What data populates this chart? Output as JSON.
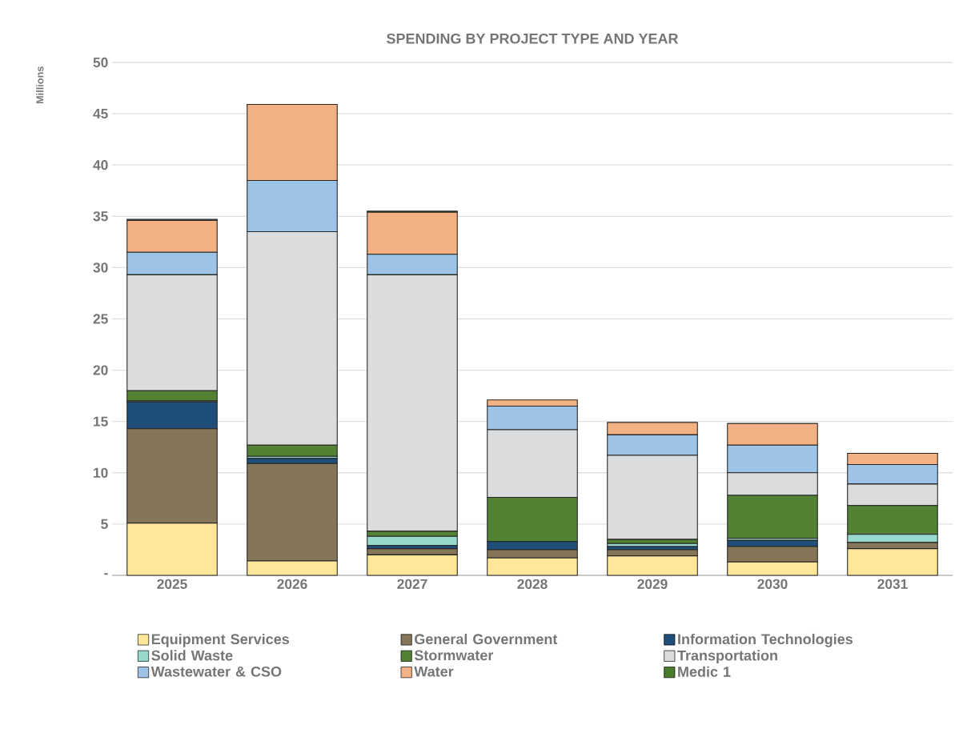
{
  "chart_data": {
    "type": "bar",
    "stacked": true,
    "title": "SPENDING BY PROJECT TYPE AND YEAR",
    "ylabel": "Millions",
    "categories": [
      "2025",
      "2026",
      "2027",
      "2028",
      "2029",
      "2030",
      "2031"
    ],
    "series": [
      {
        "name": "Equipment Services",
        "color": "#ffe699",
        "values": [
          5.1,
          1.4,
          2.0,
          1.7,
          1.9,
          1.3,
          2.6
        ]
      },
      {
        "name": "General Government",
        "color": "#857659",
        "values": [
          9.2,
          9.5,
          0.6,
          0.8,
          0.6,
          1.5,
          0.6
        ]
      },
      {
        "name": "Information Technologies",
        "color": "#1f4e79",
        "values": [
          2.6,
          0.5,
          0.3,
          0.8,
          0.3,
          0.6,
          0.0
        ]
      },
      {
        "name": "Solid Waste",
        "color": "#97d9cc",
        "values": [
          0.1,
          0.2,
          0.9,
          null,
          0.3,
          0.2,
          0.8
        ]
      },
      {
        "name": "Stormwater",
        "color": "#548235",
        "values": [
          1.0,
          1.1,
          0.5,
          4.3,
          0.4,
          4.2,
          2.8
        ]
      },
      {
        "name": "Transportation",
        "color": "#dbdcde",
        "values": [
          11.3,
          20.8,
          25.0,
          6.6,
          8.2,
          2.2,
          2.1
        ]
      },
      {
        "name": "Wastewater & CSO",
        "color": "#9dc3e6",
        "values": [
          2.2,
          5.0,
          2.0,
          2.3,
          2.0,
          2.7,
          1.9
        ]
      },
      {
        "name": "Water",
        "color": "#f4b183",
        "values": [
          3.1,
          7.4,
          4.1,
          0.6,
          1.2,
          2.1,
          1.1
        ]
      },
      {
        "name": "Medic 1",
        "color": "#4a7a2c",
        "values": [
          0.1,
          0.0,
          0.1,
          null,
          0.0,
          0.0,
          0.0
        ]
      }
    ],
    "ylim": [
      0,
      50
    ],
    "yticks": [
      {
        "value": 0,
        "label": "-"
      },
      5,
      10,
      15,
      20,
      25,
      30,
      35,
      40,
      45,
      50
    ],
    "grid": "y",
    "legend": "bottom"
  }
}
